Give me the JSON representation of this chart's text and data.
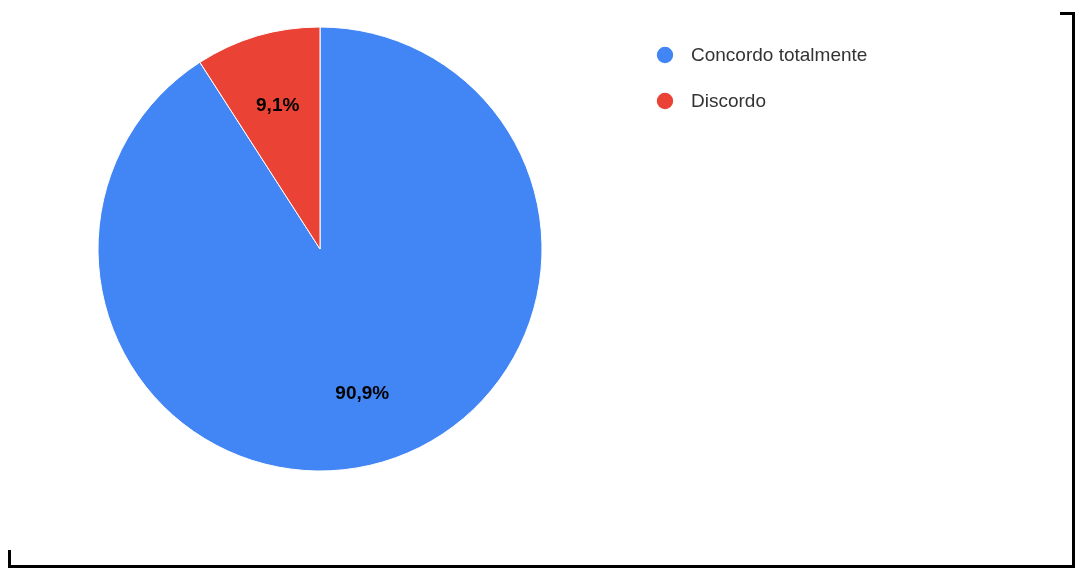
{
  "chart_data": {
    "type": "pie",
    "categories": [
      "Concordo totalmente",
      "Discordo"
    ],
    "values": [
      90.9,
      9.1
    ],
    "colors": [
      "#4285f4",
      "#ea4335"
    ],
    "value_labels": [
      "90,9%",
      "9,1%"
    ],
    "legend": "top right"
  }
}
